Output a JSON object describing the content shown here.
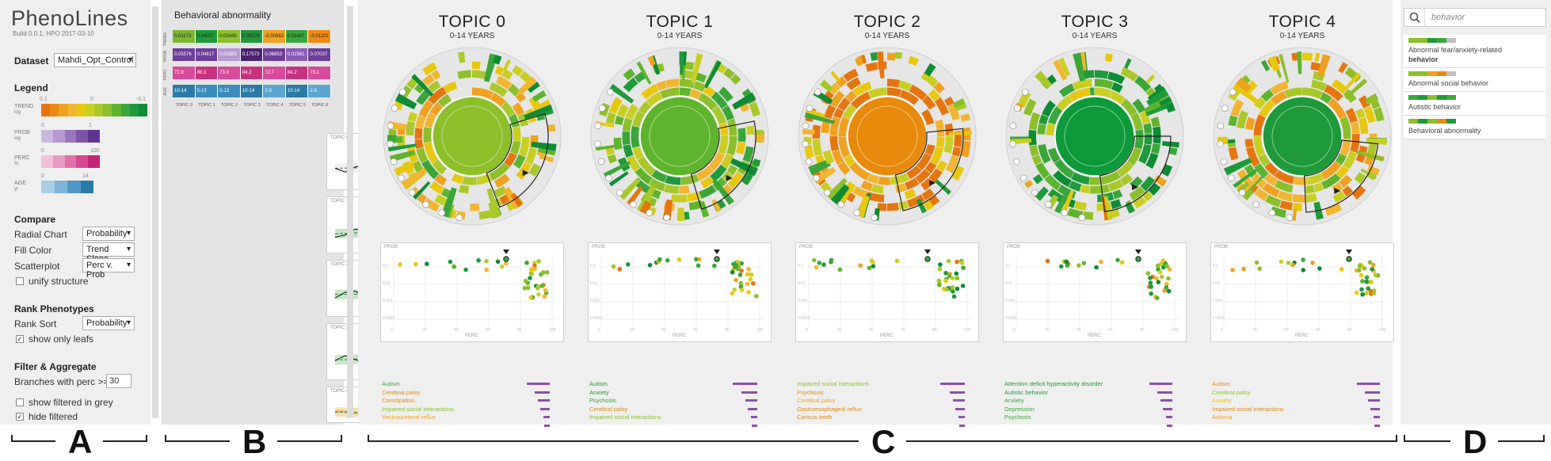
{
  "app": {
    "title": "PhenoLines",
    "build": "Build 0.0.1; HPO 2017-03-10"
  },
  "dataset": {
    "label": "Dataset",
    "value": "Mahdi_Opt_Control"
  },
  "legend": {
    "title": "Legend",
    "trend": {
      "label": "TREND",
      "sub": "log",
      "ticks": [
        "0.1",
        "0",
        "-0.1"
      ]
    },
    "prob": {
      "label": "PROB",
      "sub": "log",
      "ticks": [
        "0",
        "1"
      ]
    },
    "perc": {
      "label": "PERC",
      "sub": "%",
      "ticks": [
        "0",
        "100"
      ]
    },
    "age": {
      "label": "AGE",
      "sub": "yr",
      "ticks": [
        "0",
        "14"
      ]
    }
  },
  "compare": {
    "title": "Compare",
    "radial_label": "Radial Chart",
    "radial_value": "Probability",
    "fill_label": "Fill Color",
    "fill_value": "Trend Slope",
    "scatter_label": "Scatterplot",
    "scatter_value": "Perc v. Prob",
    "unify_label": "unify structure",
    "unify_checked": false
  },
  "rank": {
    "title": "Rank Phenotypes",
    "sort_label": "Rank Sort",
    "sort_value": "Probability",
    "leafs_label": "show only leafs",
    "leafs_checked": true
  },
  "filter": {
    "title": "Filter & Aggregate",
    "branches_label": "Branches with perc >=",
    "branches_value": "30",
    "grey_label": "show filtered in grey",
    "grey_checked": false,
    "hide_label": "hide filtered",
    "hide_checked": true
  },
  "panelB": {
    "title": "Behavioral abnormality",
    "rows": [
      {
        "label": "TREND",
        "cells": [
          "0.01173",
          "0.04057",
          "0.00445",
          "0.05229",
          "-0.00663",
          "0.02497",
          "-0.01102"
        ],
        "colors": [
          "#7cb82f",
          "#1f9a3a",
          "#8cbf2a",
          "#1f9a3a",
          "#f0a11f",
          "#3aa63a",
          "#f08a12"
        ]
      },
      {
        "label": "PROB",
        "cells": [
          "0.05576",
          "0.04817",
          "0.00383",
          "0.17573",
          "0.06853",
          "0.02561",
          "0.07037"
        ],
        "colors": [
          "#6c3d9a",
          "#6c3d9a",
          "#b79ad0",
          "#4b2270",
          "#6c3d9a",
          "#8a5bb5",
          "#6c3d9a"
        ]
      },
      {
        "label": "PERC",
        "cells": [
          "72.9",
          "86.3",
          "73.3",
          "84.2",
          "72.7",
          "84.2",
          "73.1"
        ],
        "colors": [
          "#d94a9a",
          "#c7327f",
          "#d94a9a",
          "#c7327f",
          "#d94a9a",
          "#c7327f",
          "#d94a9a"
        ]
      },
      {
        "label": "AGE",
        "cells": [
          "10-14",
          "5-13",
          "5-13",
          "10-14",
          "2-5",
          "10-14",
          "2-5"
        ],
        "colors": [
          "#2a7aa8",
          "#3a8cbc",
          "#3a8cbc",
          "#2a7aa8",
          "#5aa6d0",
          "#2a7aa8",
          "#5aa6d0"
        ]
      }
    ],
    "col_labels": [
      "TOPIC 0",
      "TOPIC 1",
      "TOPIC 2",
      "TOPIC 3",
      "TOPIC 4",
      "TOPIC 5",
      "TOPIC 6"
    ],
    "minis": [
      {
        "title": "TOPIC 0",
        "xlabel": "YEAR",
        "ylabel": "PROB",
        "ymax": "0.0201",
        "ymin": "0.0036",
        "color": "#999",
        "trend": 0.2
      },
      {
        "title": "TOPIC 1",
        "xlabel": "YEAR",
        "ylabel": "PROB",
        "ymax": "0.0927",
        "ymin": "0.0150",
        "color": "#5cb85c",
        "trend": 0.6
      },
      {
        "title": "TOPIC 2",
        "xlabel": "YEAR",
        "ylabel": "PROB",
        "ymax": "",
        "ymin": "0.0071",
        "color": "#5cb85c",
        "trend": 0.1
      },
      {
        "title": "TOPIC 3",
        "xlabel": "YEAR",
        "ylabel": "PROB",
        "ymax": "0.2113",
        "ymin": "0.1157",
        "color": "#5cb85c",
        "trend": 0.5
      },
      {
        "title": "TOPIC 4",
        "xlabel": "YEAR",
        "ylabel": "PROB",
        "ymax": "0.0882",
        "ymin": "",
        "color": "#f0a030",
        "trend": -0.1
      }
    ]
  },
  "topics": [
    {
      "title": "TOPIC 0",
      "sub": "0-14 YEARS",
      "center": "#8cbf2a",
      "items": [
        [
          "Autism",
          "#3aa63a",
          0.85
        ],
        [
          "Cerebral palsy",
          "#e08a12",
          0.55
        ],
        [
          "Constipation",
          "#e08a12",
          0.45
        ],
        [
          "Impaired social interactions",
          "#8cbf2a",
          0.35
        ],
        [
          "Vesicoureteral reflux",
          "#f0a11f",
          0.25
        ],
        [
          "",
          "#f0a11f",
          0.2
        ]
      ]
    },
    {
      "title": "TOPIC 1",
      "sub": "0-14 YEARS",
      "center": "#5fb42e",
      "items": [
        [
          "Autism",
          "#1f9a3a",
          0.9
        ],
        [
          "Anxiety",
          "#1f9a3a",
          0.6
        ],
        [
          "Psychosis",
          "#3aa63a",
          0.45
        ],
        [
          "Cerebral palsy",
          "#e08a12",
          0.35
        ],
        [
          "Impaired social interactions",
          "#8cbf2a",
          0.25
        ],
        [
          "",
          "#8cbf2a",
          0.2
        ]
      ]
    },
    {
      "title": "TOPIC 2",
      "sub": "0-14 YEARS",
      "center": "#e88a0c",
      "items": [
        [
          "Impaired social interactions",
          "#8cbf2a",
          0.9
        ],
        [
          "Psychosis",
          "#e08a12",
          0.55
        ],
        [
          "Cerebral palsy",
          "#f0a11f",
          0.45
        ],
        [
          "Gastroesophageal reflux",
          "#e08a12",
          0.35
        ],
        [
          "Carious teeth",
          "#e08a12",
          0.25
        ],
        [
          "",
          "#f0a11f",
          0.2
        ]
      ]
    },
    {
      "title": "TOPIC 3",
      "sub": "0-14 YEARS",
      "center": "#0d9a3a",
      "items": [
        [
          "Attention deficit hyperactivity disorder",
          "#1f9a3a",
          0.85
        ],
        [
          "Autistic behavior",
          "#1f9a3a",
          0.55
        ],
        [
          "Anxiety",
          "#3aa63a",
          0.45
        ],
        [
          "Depression",
          "#3aa63a",
          0.35
        ],
        [
          "Psychosis",
          "#3aa63a",
          0.25
        ],
        [
          "",
          "#3aa63a",
          0.2
        ]
      ]
    },
    {
      "title": "TOPIC 4",
      "sub": "0-14 YEARS",
      "center": "#1f9a3a",
      "items": [
        [
          "Autism",
          "#e08a12",
          0.85
        ],
        [
          "Cerebral palsy",
          "#8cbf2a",
          0.55
        ],
        [
          "Anxiety",
          "#e8c80f",
          0.45
        ],
        [
          "Impaired social interactions",
          "#e08a12",
          0.35
        ],
        [
          "Asthma",
          "#f0a11f",
          0.25
        ],
        [
          "",
          "#f0a11f",
          0.2
        ]
      ]
    }
  ],
  "scatter_axes": {
    "ylabel": "PROB",
    "xlabel": "PERC",
    "yticks": [
      "0.1",
      "0.01",
      "0.001",
      "0.0001"
    ],
    "xticks": [
      "0",
      "20",
      "40",
      "60",
      "80",
      "100"
    ]
  },
  "search": {
    "placeholder": "behavior",
    "value": "behavior"
  },
  "results": [
    {
      "line1": "Abnormal fear/anxiety-related",
      "line2": "behavior",
      "colors": [
        "#8cbf2a",
        "#8cbf2a",
        "#1f9a3a",
        "#3aa63a",
        "#c0c0c0"
      ]
    },
    {
      "line1": "Abnormal social behavior",
      "line2": "",
      "colors": [
        "#8cbf2a",
        "#8cbf2a",
        "#f0a11f",
        "#e88a0c",
        "#c0c0c0"
      ]
    },
    {
      "line1": "Autistic behavior",
      "line2": "",
      "colors": [
        "#3aa63a",
        "#1f9a3a",
        "#8cbf2a",
        "#1f9a3a",
        "#3aa63a"
      ]
    },
    {
      "line1": "Behavioral abnormality",
      "line2": "",
      "colors": [
        "#8cbf2a",
        "#1f9a3a",
        "#8cbf2a",
        "#e88a0c",
        "#1f9a3a"
      ]
    }
  ],
  "panel_letters": [
    "A",
    "B",
    "C",
    "D"
  ]
}
